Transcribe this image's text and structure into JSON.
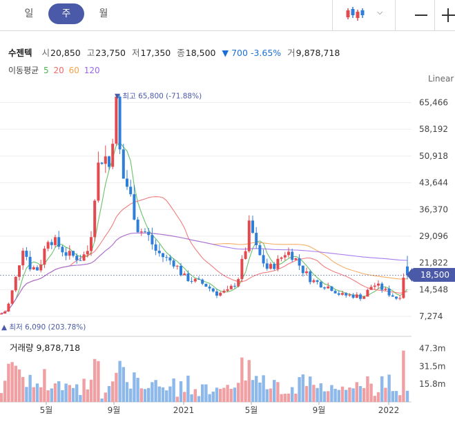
{
  "periods": [
    {
      "label": "일",
      "active": false
    },
    {
      "label": "주",
      "active": true
    },
    {
      "label": "월",
      "active": false
    }
  ],
  "colors": {
    "up": "#e34a4f",
    "down": "#2f7ed8",
    "accent": "#4a5aa8",
    "ma5": "#4cb84c",
    "ma20": "#ee6666",
    "ma60": "#f5a04a",
    "ma120": "#9966ee"
  },
  "stock": {
    "name": "수젠텍",
    "open_label": "시",
    "open": "20,850",
    "high_label": "고",
    "high": "23,750",
    "low_label": "저",
    "low": "17,350",
    "close_label": "종",
    "close": "18,500",
    "change": "▼ 700",
    "change_pct": "-3.65%",
    "volume_label": "거",
    "volume": "9,878,718"
  },
  "ma_legend": {
    "title": "이동평균",
    "p5": "5",
    "p20": "20",
    "p60": "60",
    "p120": "120"
  },
  "scale_label": "Linear",
  "chart_data": {
    "type": "candlestick",
    "y_ticks": [
      "65,466",
      "58,192",
      "50,918",
      "43,644",
      "36,370",
      "29,096",
      "21,822",
      "14,548",
      "7,274"
    ],
    "y_tick_values": [
      65466,
      58192,
      50918,
      43644,
      36370,
      29096,
      21822,
      14548,
      7274
    ],
    "price_label": "18,500",
    "price_value": 18500,
    "high_marker": {
      "text": "▼ 최고 65,800 (-71.88%)",
      "value": 65800
    },
    "low_marker": {
      "text": "▲ 최저 6,090 (203.78%)",
      "value": 6090
    },
    "x_labels": [
      "5월",
      "9월",
      "2021",
      "5월",
      "9월",
      "2022"
    ],
    "volume_label": "거래량",
    "volume_value": "9,878,718",
    "volume_ticks": [
      "47.3m",
      "31.5m",
      "15.8m"
    ],
    "volume_tick_values": [
      47.3,
      31.5,
      15.8
    ],
    "moving_averages": [
      "5",
      "20",
      "60",
      "120"
    ],
    "last_candle": {
      "open": 20850,
      "high": 23750,
      "low": 17350,
      "close": 18500,
      "volume": 9.878718
    }
  }
}
